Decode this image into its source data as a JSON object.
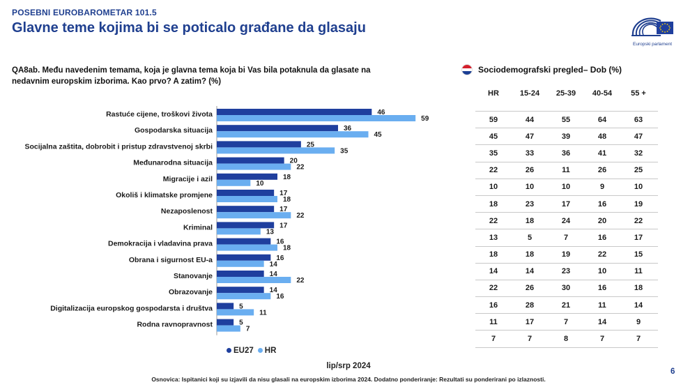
{
  "header": {
    "kicker": "POSEBNI EUROBAROMETAR 101.5",
    "title": "Glavne teme kojima bi se poticalo građane da glasaju",
    "logo_text": "Europski parlament"
  },
  "question": "QA8ab. Među navedenim temama, koja je glavna tema koja bi Vas bila potaknula da glasate na nedavnim europskim izborima. Kao prvo? A zatim? (%)",
  "colors": {
    "eu27": "#1f3f9e",
    "hr": "#6aaef0",
    "title": "#1f3f8f"
  },
  "legend": {
    "eu27": "EU27",
    "hr": "HR"
  },
  "period": "lip/srp 2024",
  "footnote": "Osnovica: Ispitanici koji su izjavili da nisu glasali na europskim izborima 2024. Dodatno ponderiranje: Rezultati su ponderirani po izlaznosti.",
  "page_number": "6",
  "chart_data": {
    "type": "bar",
    "orientation": "horizontal",
    "categories": [
      "Rastuće cijene, troškovi života",
      "Gospodarska situacija",
      "Socijalna zaštita, dobrobit i pristup zdravstvenoj skrbi",
      "Međunarodna situacija",
      "Migracije i azil",
      "Okoliš i klimatske promjene",
      "Nezaposlenost",
      "Kriminal",
      "Demokracija i vladavina prava",
      "Obrana i sigurnost EU-a",
      "Stanovanje",
      "Obrazovanje",
      "Digitalizacija europskog gospodarsta i društva",
      "Rodna ravnopravnost"
    ],
    "series": [
      {
        "name": "EU27",
        "values": [
          46,
          36,
          25,
          20,
          18,
          17,
          17,
          17,
          16,
          16,
          14,
          14,
          5,
          5
        ]
      },
      {
        "name": "HR",
        "values": [
          59,
          45,
          35,
          22,
          10,
          18,
          22,
          13,
          18,
          14,
          22,
          16,
          11,
          7
        ]
      }
    ],
    "xlim": [
      0,
      60
    ],
    "grid": false,
    "legend_position": "bottom"
  },
  "table": {
    "title": "Sociodemografski pregled– Dob (%)",
    "flag_colors": [
      "#d4202c",
      "#ffffff",
      "#1b3f94"
    ],
    "columns": [
      "HR",
      "15-24",
      "25-39",
      "40-54",
      "55 +"
    ],
    "rows": [
      [
        "59",
        "44",
        "55",
        "64",
        "63"
      ],
      [
        "45",
        "47",
        "39",
        "48",
        "47"
      ],
      [
        "35",
        "33",
        "36",
        "41",
        "32"
      ],
      [
        "22",
        "26",
        "11",
        "26",
        "25"
      ],
      [
        "10",
        "10",
        "10",
        "9",
        "10"
      ],
      [
        "18",
        "23",
        "17",
        "16",
        "19"
      ],
      [
        "22",
        "18",
        "24",
        "20",
        "22"
      ],
      [
        "13",
        "5",
        "7",
        "16",
        "17"
      ],
      [
        "18",
        "18",
        "19",
        "22",
        "15"
      ],
      [
        "14",
        "14",
        "23",
        "10",
        "11"
      ],
      [
        "22",
        "26",
        "30",
        "16",
        "18"
      ],
      [
        "16",
        "28",
        "21",
        "11",
        "14"
      ],
      [
        "11",
        "17",
        "7",
        "14",
        "9"
      ],
      [
        "7",
        "7",
        "8",
        "7",
        "7"
      ]
    ]
  }
}
